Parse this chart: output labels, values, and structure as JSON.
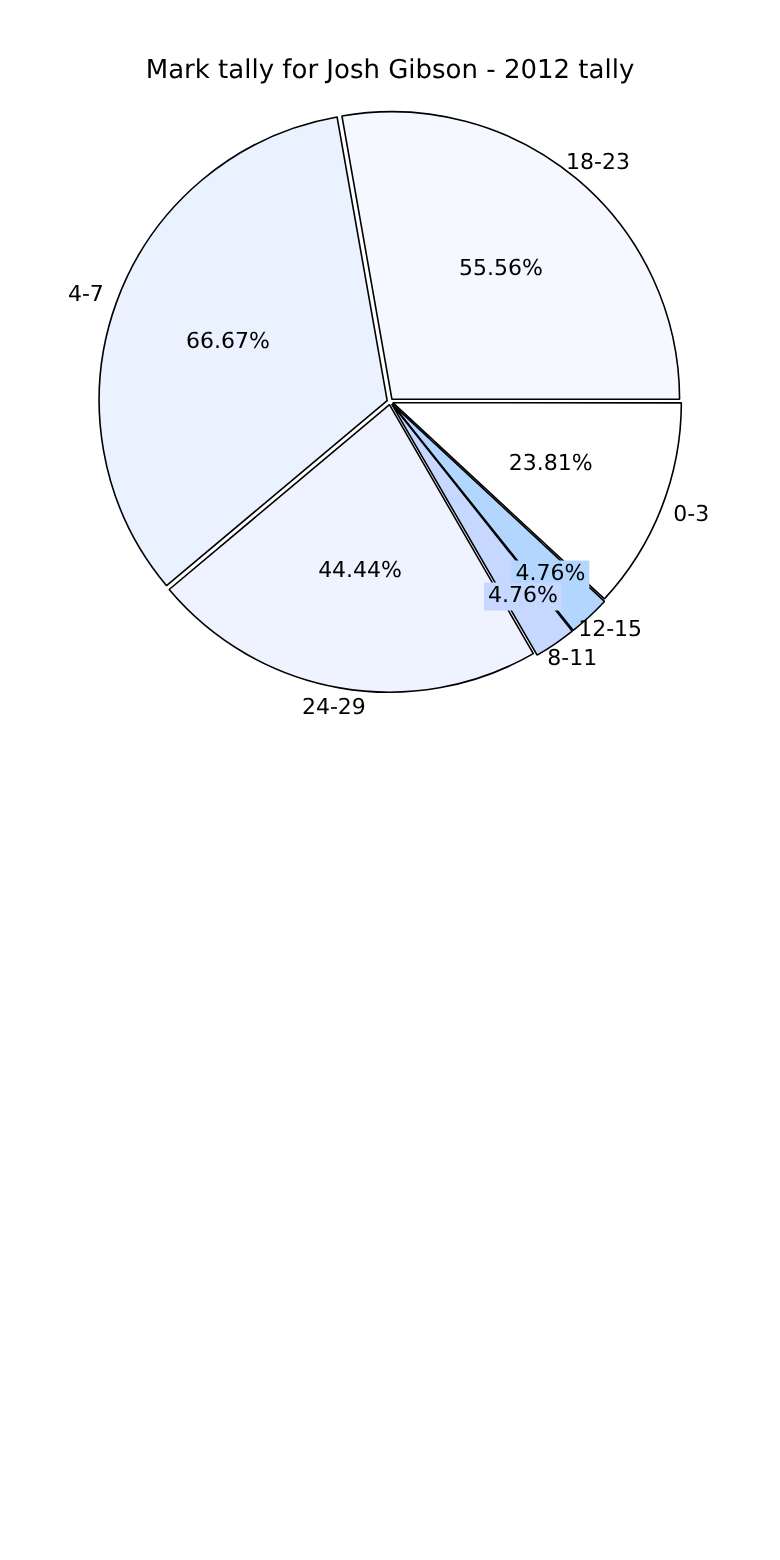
{
  "chart_data": {
    "type": "pie",
    "title": "Mark tally for Josh Gibson - 2012 tally",
    "categories": [
      "0-3",
      "12-15",
      "8-11",
      "24-29",
      "4-7",
      "18-23"
    ],
    "values": [
      23.81,
      4.76,
      4.76,
      44.44,
      66.67,
      55.56
    ],
    "value_labels": [
      "23.81%",
      "4.76%",
      "4.76%",
      "44.44%",
      "66.67%",
      "55.56%"
    ],
    "colors": [
      "#ffffff",
      "#b3d6ff",
      "#c6d8ff",
      "#eef3ff",
      "#eaf1ff",
      "#f5f8ff"
    ],
    "legend": false
  }
}
